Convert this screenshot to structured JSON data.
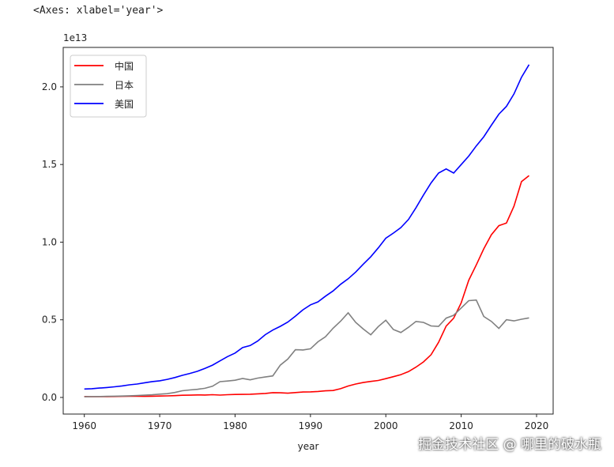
{
  "output_repr": "<Axes: xlabel='year'>",
  "watermark": "掘金技术社区 @ 哪里的破水瓶",
  "chart_data": {
    "type": "line",
    "title": "",
    "xlabel": "year",
    "ylabel": "",
    "y_offset_label": "1e13",
    "xlim": [
      1957.2,
      2022.2
    ],
    "ylim": [
      -0.107,
      2.254
    ],
    "xticks": [
      1960,
      1970,
      1980,
      1990,
      2000,
      2010,
      2020
    ],
    "yticks": [
      0.0,
      0.5,
      1.0,
      1.5,
      2.0
    ],
    "ytick_labels": [
      "0.0",
      "0.5",
      "1.0",
      "1.5",
      "2.0"
    ],
    "grid": false,
    "legend_position": "upper-left",
    "x_start": 1960,
    "x_end": 2019,
    "series": [
      {
        "name": "中国",
        "color": "#ff0000",
        "values": [
          0.00597,
          0.005,
          0.00472,
          0.00507,
          0.00594,
          0.00704,
          0.00768,
          0.00729,
          0.00709,
          0.00797,
          0.00926,
          0.00996,
          0.01137,
          0.01385,
          0.01442,
          0.01634,
          0.01539,
          0.01749,
          0.01495,
          0.01783,
          0.01911,
          0.01956,
          0.0209,
          0.02307,
          0.02599,
          0.03094,
          0.03008,
          0.02729,
          0.03123,
          0.03477,
          0.03609,
          0.03834,
          0.04269,
          0.04447,
          0.05643,
          0.07345,
          0.08637,
          0.09615,
          0.1029,
          0.1094,
          0.1211,
          0.1339,
          0.1471,
          0.166,
          0.1955,
          0.2286,
          0.2752,
          0.355,
          0.4594,
          0.5102,
          0.6087,
          0.7552,
          0.8532,
          0.957,
          1.0476,
          1.1062,
          1.1233,
          1.231,
          1.3895,
          1.428
        ]
      },
      {
        "name": "日本",
        "color": "#808080",
        "values": [
          0.00443,
          0.00537,
          0.00607,
          0.00695,
          0.00817,
          0.0091,
          0.01058,
          0.01237,
          0.01469,
          0.0172,
          0.02126,
          0.02408,
          0.03184,
          0.04321,
          0.04799,
          0.05212,
          0.05866,
          0.07213,
          0.10138,
          0.10559,
          0.11053,
          0.12182,
          0.11347,
          0.12437,
          0.13187,
          0.13856,
          0.20788,
          0.24729,
          0.30711,
          0.30542,
          0.31329,
          0.35842,
          0.39088,
          0.44545,
          0.4907,
          0.54492,
          0.48335,
          0.44148,
          0.40324,
          0.45623,
          0.49683,
          0.43745,
          0.41829,
          0.45193,
          0.48931,
          0.48314,
          0.46015,
          0.45794,
          0.51062,
          0.52891,
          0.57591,
          0.62333,
          0.62721,
          0.52123,
          0.48965,
          0.44449,
          0.50037,
          0.49309,
          0.50379,
          0.51237
        ]
      },
      {
        "name": "美国",
        "color": "#0000ff",
        "values": [
          0.0543,
          0.0563,
          0.0605,
          0.0639,
          0.0686,
          0.0744,
          0.0815,
          0.0862,
          0.0943,
          0.102,
          0.1073,
          0.1165,
          0.128,
          0.1425,
          0.1545,
          0.1685,
          0.1873,
          0.2082,
          0.2352,
          0.2627,
          0.2857,
          0.3207,
          0.3343,
          0.3634,
          0.4037,
          0.4339,
          0.458,
          0.4855,
          0.5236,
          0.5642,
          0.5963,
          0.6158,
          0.652,
          0.6859,
          0.7287,
          0.764,
          0.8073,
          0.8578,
          0.9063,
          0.9631,
          1.0252,
          1.0582,
          1.0936,
          1.1458,
          1.2214,
          1.3037,
          1.3815,
          1.4452,
          1.4713,
          1.4449,
          1.4992,
          1.5543,
          1.6197,
          1.6785,
          1.7527,
          1.8238,
          1.8745,
          1.9543,
          2.0612,
          2.1433
        ]
      }
    ]
  }
}
